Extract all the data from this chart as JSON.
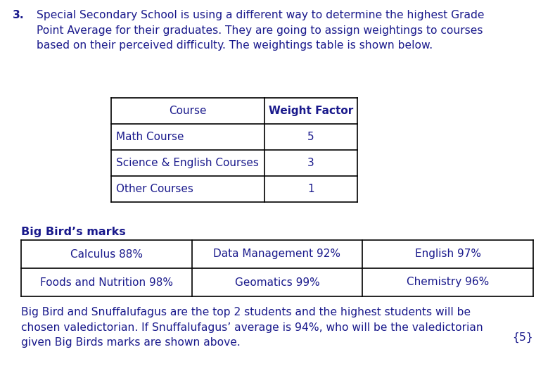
{
  "background_color": "#ffffff",
  "text_color": "#1a1a8c",
  "question_number": "3.",
  "intro_text": "Special Secondary School is using a different way to determine the highest Grade\nPoint Average for their graduates. They are going to assign weightings to courses\nbased on their perceived difficulty. The weightings table is shown below.",
  "table1_headers": [
    "Course",
    "Weight Factor"
  ],
  "table1_rows": [
    [
      "Math Course",
      "5"
    ],
    [
      "Science & English Courses",
      "3"
    ],
    [
      "Other Courses",
      "1"
    ]
  ],
  "section_title": "Big Bird’s marks",
  "table2_rows": [
    [
      "Calculus 88%",
      "Data Management 92%",
      "English 97%"
    ],
    [
      "Foods and Nutrition 98%",
      "Geomatics 99%",
      "Chemistry 96%"
    ]
  ],
  "bottom_text": "Big Bird and Snuffalufagus are the top 2 students and the highest students will be\nchosen valedictorian. If Snuffalufagus’ average is 94%, who will be the valedictorian\ngiven Big Birds marks are shown above.",
  "marks": "{5}",
  "font_size_intro": 11.2,
  "font_size_table": 11.0,
  "font_size_section": 11.5,
  "font_size_bottom": 11.2
}
